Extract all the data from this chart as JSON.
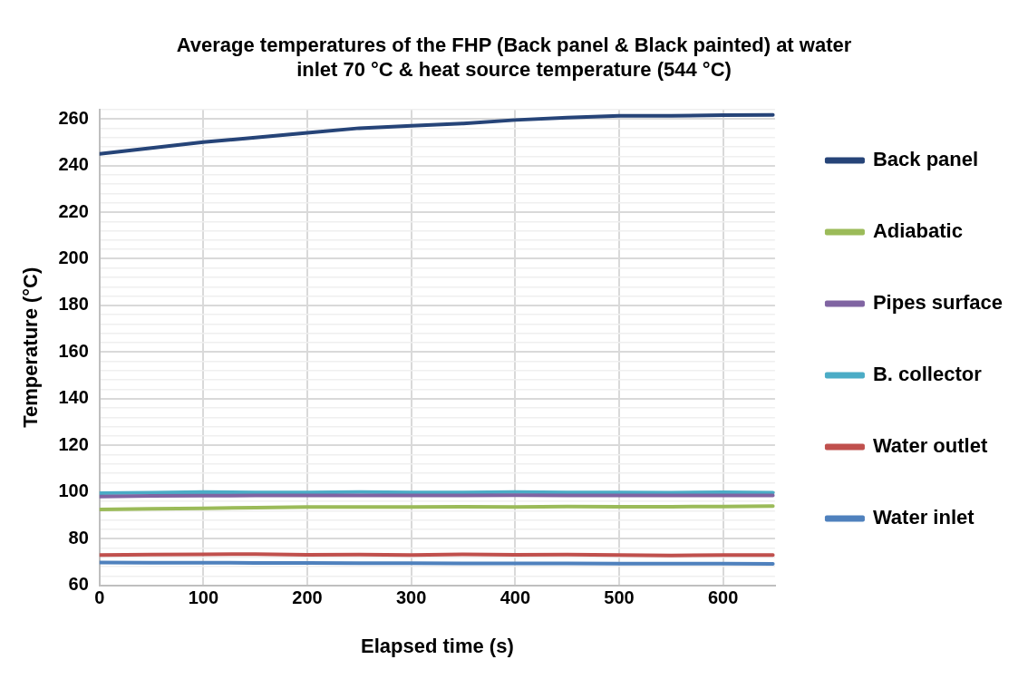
{
  "chart_data": {
    "type": "line",
    "title": "Average temperatures of the FHP (Back panel & Black painted) at water inlet 70 °C & heat source temperature (544 °C)",
    "xlabel": "Elapsed time (s)",
    "ylabel": "Temperature (°C)",
    "x": [
      0,
      50,
      100,
      150,
      200,
      250,
      300,
      350,
      400,
      450,
      500,
      550,
      600,
      648
    ],
    "series": [
      {
        "name": "Back panel",
        "color": "#264478",
        "values": [
          245,
          247.5,
          250,
          252,
          254,
          256,
          257,
          258,
          259.5,
          260.5,
          261.3,
          261.3,
          261.6,
          261.7
        ]
      },
      {
        "name": "Adiabatic",
        "color": "#9bbb59",
        "values": [
          92.5,
          92.8,
          93,
          93.3,
          93.6,
          93.6,
          93.6,
          93.7,
          93.6,
          93.8,
          93.7,
          93.7,
          93.8,
          94
        ]
      },
      {
        "name": "Pipes surface",
        "color": "#8064a2",
        "values": [
          98,
          98.3,
          98.4,
          98.5,
          98.5,
          98.5,
          98.5,
          98.5,
          98.6,
          98.5,
          98.5,
          98.5,
          98.5,
          98.5
        ]
      },
      {
        "name": "B. collector",
        "color": "#4bacc6",
        "values": [
          99.5,
          99.7,
          100,
          99.8,
          99.8,
          100,
          99.8,
          99.8,
          100,
          99.8,
          99.8,
          99.7,
          99.9,
          99.7
        ]
      },
      {
        "name": "Water outlet",
        "color": "#c0504d",
        "values": [
          73,
          73.2,
          73.3,
          73.4,
          73.1,
          73.2,
          73,
          73.3,
          73.1,
          73.2,
          73,
          72.8,
          73,
          73
        ]
      },
      {
        "name": "Water inlet",
        "color": "#4f81bd",
        "values": [
          69.8,
          69.7,
          69.7,
          69.6,
          69.6,
          69.5,
          69.5,
          69.4,
          69.4,
          69.4,
          69.3,
          69.3,
          69.3,
          69.2
        ]
      }
    ],
    "xlim": [
      0,
      650
    ],
    "xticks": [
      0,
      100,
      200,
      300,
      400,
      500,
      600
    ],
    "ylim": [
      60,
      264
    ],
    "yticks": [
      60,
      {
        "value": 64,
        "label": null
      },
      {
        "value": 68,
        "label": null
      },
      {
        "value": 72,
        "label": null
      },
      {
        "value": 76,
        "label": null
      },
      80,
      {
        "value": 84,
        "label": null
      },
      {
        "value": 88,
        "label": null
      },
      {
        "value": 92,
        "label": null
      },
      {
        "value": 96,
        "label": null
      },
      100,
      {
        "value": 104,
        "label": null
      },
      {
        "value": 108,
        "label": null
      },
      {
        "value": 112,
        "label": null
      },
      {
        "value": 116,
        "label": null
      },
      120,
      {
        "value": 124,
        "label": null
      },
      {
        "value": 128,
        "label": null
      },
      {
        "value": 132,
        "label": null
      },
      {
        "value": 136,
        "label": null
      },
      140,
      {
        "value": 144,
        "label": null
      },
      {
        "value": 148,
        "label": null
      },
      {
        "value": 152,
        "label": null
      },
      {
        "value": 156,
        "label": null
      },
      160,
      {
        "value": 164,
        "label": null
      },
      {
        "value": 168,
        "label": null
      },
      {
        "value": 172,
        "label": null
      },
      {
        "value": 176,
        "label": null
      },
      180,
      {
        "value": 184,
        "label": null
      },
      {
        "value": 188,
        "label": null
      },
      {
        "value": 192,
        "label": null
      },
      {
        "value": 196,
        "label": null
      },
      200,
      {
        "value": 204,
        "label": null
      },
      {
        "value": 208,
        "label": null
      },
      {
        "value": 212,
        "label": null
      },
      {
        "value": 216,
        "label": null
      },
      220,
      {
        "value": 224,
        "label": null
      },
      {
        "value": 228,
        "label": null
      },
      {
        "value": 232,
        "label": null
      },
      {
        "value": 236,
        "label": null
      },
      240,
      {
        "value": 244,
        "label": null
      },
      {
        "value": 248,
        "label": null
      },
      {
        "value": 252,
        "label": null
      },
      {
        "value": 256,
        "label": null
      },
      260,
      {
        "value": 264,
        "label": null
      }
    ],
    "grid": true,
    "legend": "right",
    "marker": "none",
    "line_style": "solid"
  }
}
